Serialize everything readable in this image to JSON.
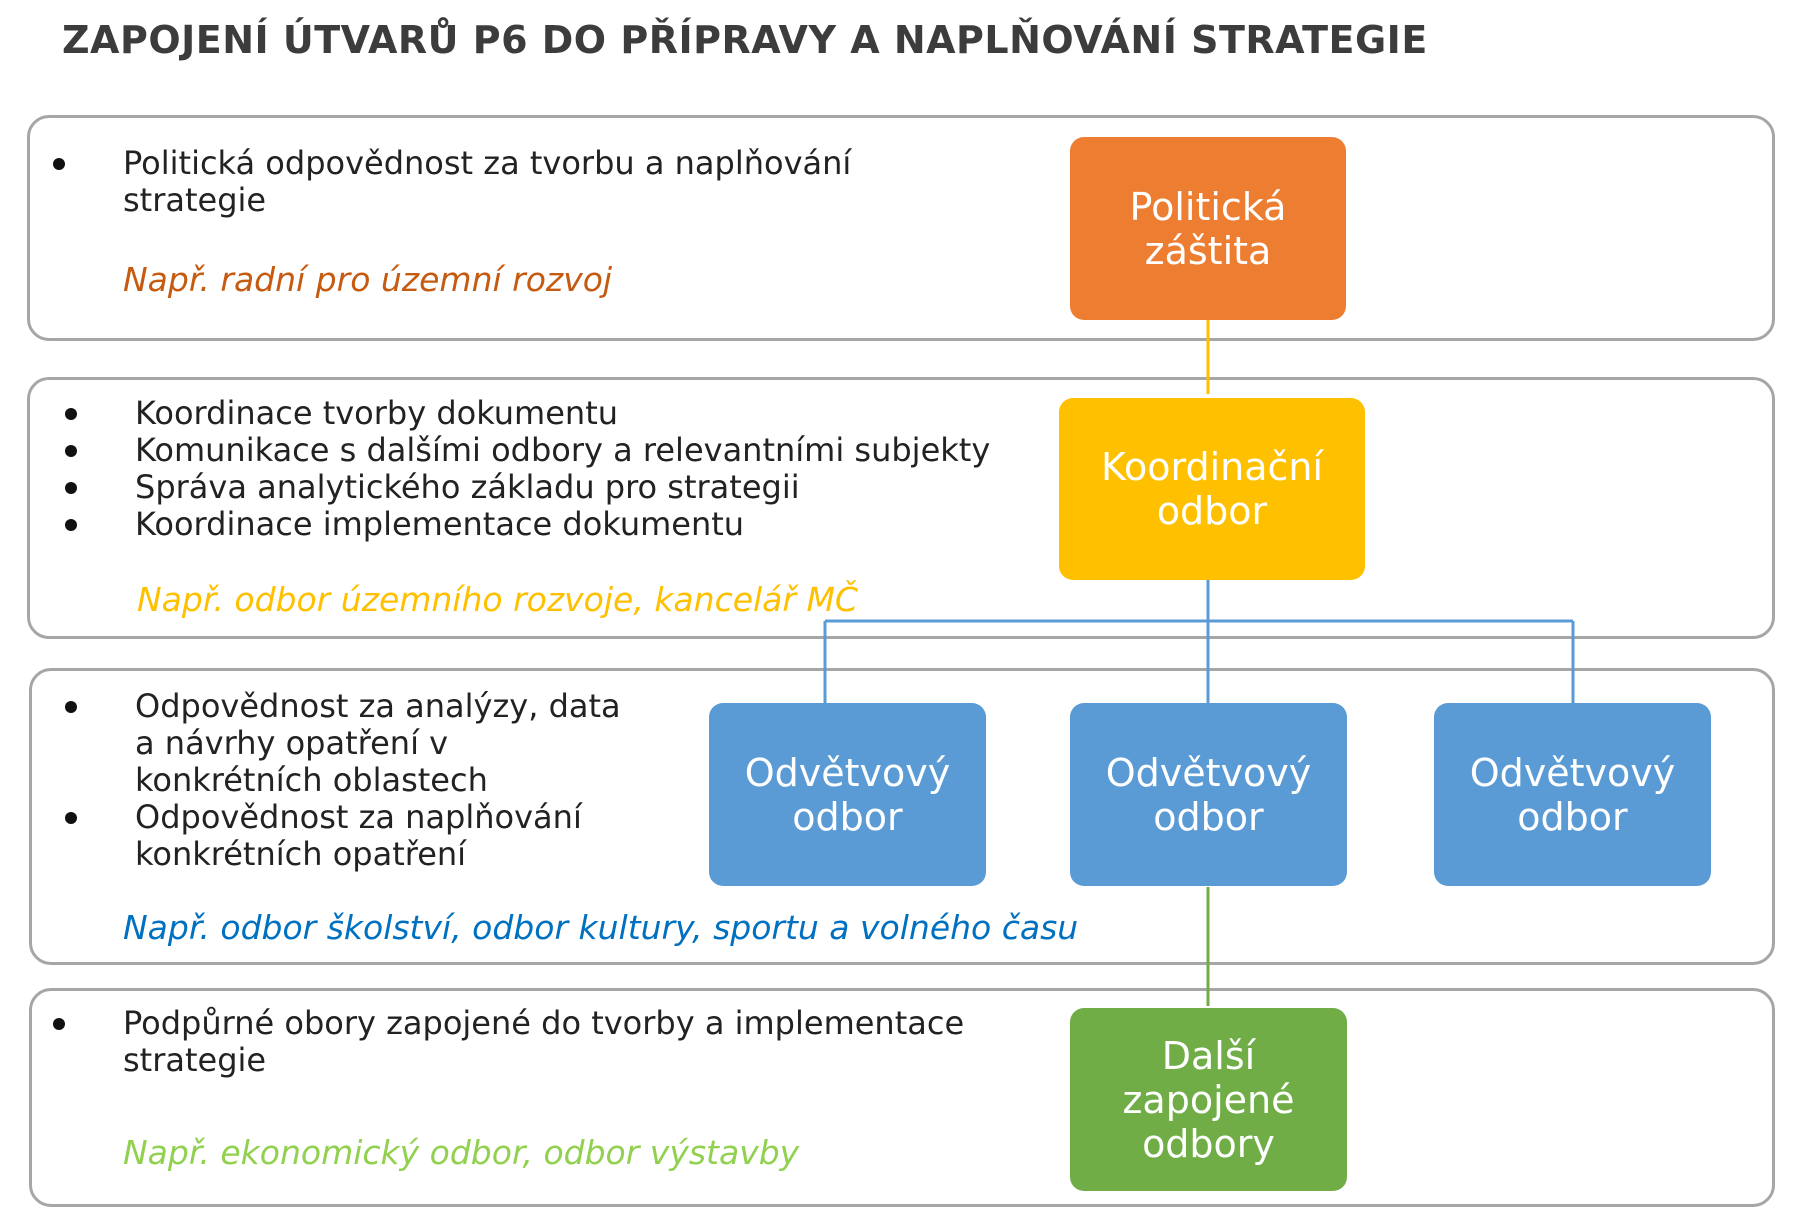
{
  "title": "ZAPOJENÍ ÚTVARŮ P6 DO PŘÍPRAVY A NAPLŇOVÁNÍ STRATEGIE",
  "colors": {
    "political": "#ed7d31",
    "coordination": "#ffc000",
    "sector": "#5b9bd5",
    "other": "#70ad47",
    "political_text": "#c55a11",
    "coordination_text": "#ffc000",
    "sector_text": "#0070c0",
    "other_text": "#92d050",
    "panel_border": "#a6a6a6"
  },
  "levels": [
    {
      "bullets": [
        "Politická odpovědnost za tvorbu a naplňování strategie"
      ],
      "example": "Např. radní pro územní rozvoj",
      "box": "Politická\nzáštita"
    },
    {
      "bullets": [
        "Koordinace tvorby dokumentu",
        "Komunikace s dalšími odbory a relevantními subjekty",
        "Správa analytického základu pro strategii",
        "Koordinace implementace dokumentu"
      ],
      "example": "Např. odbor územního rozvoje, kancelář MČ",
      "box": "Koordinační\nodbor"
    },
    {
      "bullets": [
        "Odpovědnost za analýzy, data a návrhy opatření v konkrétních oblastech",
        "Odpovědnost za naplňování konkrétních opatření"
      ],
      "example": "Např. odbor školství, odbor kultury, sportu a volného času",
      "boxes": [
        "Odvětvový\nodbor",
        "Odvětvový\nodbor",
        "Odvětvový\nodbor"
      ]
    },
    {
      "bullets": [
        "Podpůrné obory zapojené do tvorby a implementace strategie"
      ],
      "example": "Např. ekonomický odbor, odbor výstavby",
      "box": "Další\nzapojené\nodbory"
    }
  ]
}
